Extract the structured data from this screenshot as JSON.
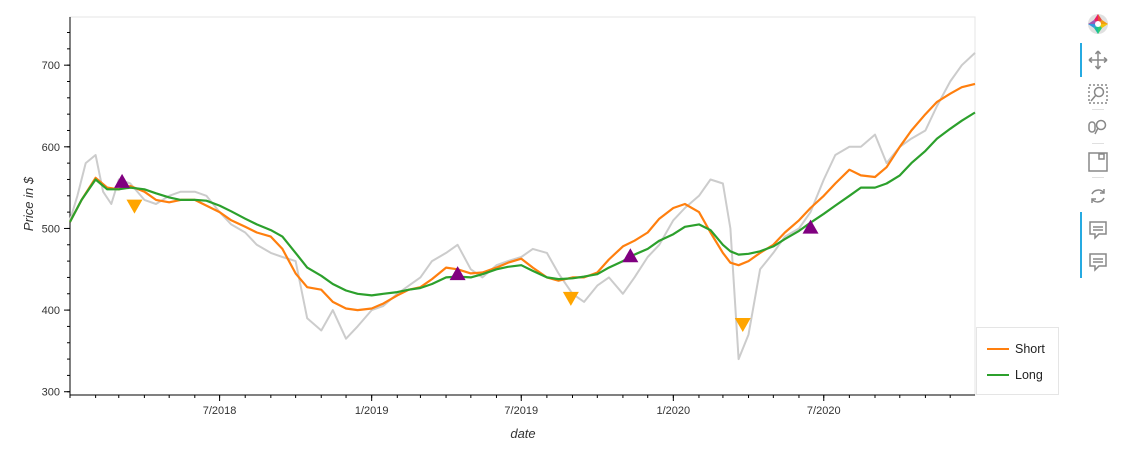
{
  "chart_data": {
    "type": "line",
    "title": "",
    "xlabel": "date",
    "ylabel": "Price in $",
    "ylim": [
      296,
      759
    ],
    "xlim": [
      "2018-01-01",
      "2020-12-31"
    ],
    "x_ticks": [
      {
        "date": "2018-07-01",
        "label": "7/2018"
      },
      {
        "date": "2019-01-01",
        "label": "1/2019"
      },
      {
        "date": "2019-07-01",
        "label": "7/2019"
      },
      {
        "date": "2020-01-01",
        "label": "1/2020"
      },
      {
        "date": "2020-07-01",
        "label": "7/2020"
      }
    ],
    "y_ticks": [
      300,
      400,
      500,
      600,
      700
    ],
    "legend_position": "bottom-right, outside plot",
    "series": [
      {
        "name": "",
        "color": "#cccccc",
        "dates": [
          "2018-01-01",
          "2018-01-10",
          "2018-01-20",
          "2018-02-01",
          "2018-02-10",
          "2018-02-20",
          "2018-03-01",
          "2018-03-15",
          "2018-04-01",
          "2018-04-15",
          "2018-05-01",
          "2018-05-15",
          "2018-06-01",
          "2018-06-15",
          "2018-07-01",
          "2018-07-15",
          "2018-08-01",
          "2018-08-15",
          "2018-09-01",
          "2018-09-15",
          "2018-10-01",
          "2018-10-15",
          "2018-11-01",
          "2018-11-15",
          "2018-12-01",
          "2018-12-15",
          "2019-01-01",
          "2019-01-15",
          "2019-02-01",
          "2019-02-15",
          "2019-03-01",
          "2019-03-15",
          "2019-04-01",
          "2019-04-15",
          "2019-05-01",
          "2019-05-15",
          "2019-06-01",
          "2019-06-15",
          "2019-07-01",
          "2019-07-15",
          "2019-08-01",
          "2019-08-15",
          "2019-09-01",
          "2019-09-15",
          "2019-10-01",
          "2019-10-15",
          "2019-11-01",
          "2019-11-15",
          "2019-12-01",
          "2019-12-15",
          "2020-01-01",
          "2020-01-15",
          "2020-02-01",
          "2020-02-15",
          "2020-03-01",
          "2020-03-10",
          "2020-03-20",
          "2020-04-01",
          "2020-04-15",
          "2020-05-01",
          "2020-05-15",
          "2020-06-01",
          "2020-06-15",
          "2020-07-01",
          "2020-07-15",
          "2020-08-01",
          "2020-08-15",
          "2020-09-01",
          "2020-09-15",
          "2020-10-01",
          "2020-10-15",
          "2020-11-01",
          "2020-11-15",
          "2020-12-01",
          "2020-12-15",
          "2020-12-31"
        ],
        "values": [
          510,
          540,
          580,
          590,
          545,
          530,
          560,
          555,
          535,
          530,
          540,
          545,
          545,
          540,
          520,
          505,
          495,
          480,
          470,
          465,
          460,
          390,
          375,
          400,
          365,
          380,
          400,
          405,
          420,
          430,
          440,
          460,
          470,
          480,
          450,
          440,
          455,
          460,
          465,
          475,
          470,
          445,
          420,
          410,
          430,
          440,
          420,
          440,
          465,
          480,
          510,
          525,
          540,
          560,
          555,
          500,
          340,
          370,
          450,
          470,
          490,
          500,
          520,
          560,
          590,
          600,
          600,
          615,
          580,
          600,
          610,
          620,
          650,
          680,
          700,
          715
        ]
      },
      {
        "name": "Short",
        "color": "#ff7f0e",
        "dates": [
          "2018-01-01",
          "2018-01-15",
          "2018-02-01",
          "2018-02-15",
          "2018-03-01",
          "2018-03-15",
          "2018-04-01",
          "2018-04-15",
          "2018-05-01",
          "2018-05-15",
          "2018-06-01",
          "2018-06-15",
          "2018-07-01",
          "2018-07-15",
          "2018-08-01",
          "2018-08-15",
          "2018-09-01",
          "2018-09-15",
          "2018-10-01",
          "2018-10-15",
          "2018-11-01",
          "2018-11-15",
          "2018-12-01",
          "2018-12-15",
          "2019-01-01",
          "2019-01-15",
          "2019-02-01",
          "2019-02-15",
          "2019-03-01",
          "2019-03-15",
          "2019-04-01",
          "2019-04-15",
          "2019-05-01",
          "2019-05-15",
          "2019-06-01",
          "2019-06-15",
          "2019-07-01",
          "2019-07-15",
          "2019-08-01",
          "2019-08-15",
          "2019-09-01",
          "2019-09-15",
          "2019-10-01",
          "2019-10-15",
          "2019-11-01",
          "2019-11-15",
          "2019-12-01",
          "2019-12-15",
          "2020-01-01",
          "2020-01-15",
          "2020-02-01",
          "2020-02-15",
          "2020-03-01",
          "2020-03-10",
          "2020-03-20",
          "2020-04-01",
          "2020-04-15",
          "2020-05-01",
          "2020-05-15",
          "2020-06-01",
          "2020-06-15",
          "2020-07-01",
          "2020-07-15",
          "2020-08-01",
          "2020-08-15",
          "2020-09-01",
          "2020-09-15",
          "2020-10-01",
          "2020-10-15",
          "2020-11-01",
          "2020-11-15",
          "2020-12-01",
          "2020-12-15",
          "2020-12-31"
        ],
        "values": [
          508,
          535,
          562,
          550,
          548,
          552,
          545,
          535,
          532,
          535,
          535,
          528,
          520,
          510,
          502,
          495,
          490,
          475,
          445,
          428,
          425,
          410,
          402,
          400,
          402,
          408,
          418,
          425,
          428,
          438,
          452,
          450,
          445,
          446,
          452,
          458,
          463,
          452,
          440,
          436,
          440,
          440,
          446,
          462,
          478,
          485,
          495,
          512,
          525,
          530,
          520,
          495,
          470,
          458,
          455,
          460,
          470,
          480,
          495,
          510,
          525,
          540,
          555,
          572,
          565,
          563,
          575,
          600,
          620,
          640,
          655,
          665,
          673,
          677
        ]
      },
      {
        "name": "Long",
        "color": "#2ca02c",
        "dates": [
          "2018-01-01",
          "2018-01-15",
          "2018-02-01",
          "2018-02-15",
          "2018-03-01",
          "2018-03-15",
          "2018-04-01",
          "2018-04-15",
          "2018-05-01",
          "2018-05-15",
          "2018-06-01",
          "2018-06-15",
          "2018-07-01",
          "2018-07-15",
          "2018-08-01",
          "2018-08-15",
          "2018-09-01",
          "2018-09-15",
          "2018-10-01",
          "2018-10-15",
          "2018-11-01",
          "2018-11-15",
          "2018-12-01",
          "2018-12-15",
          "2019-01-01",
          "2019-01-15",
          "2019-02-01",
          "2019-02-15",
          "2019-03-01",
          "2019-03-15",
          "2019-04-01",
          "2019-04-15",
          "2019-05-01",
          "2019-05-15",
          "2019-06-01",
          "2019-06-15",
          "2019-07-01",
          "2019-07-15",
          "2019-08-01",
          "2019-08-15",
          "2019-09-01",
          "2019-09-15",
          "2019-10-01",
          "2019-10-15",
          "2019-11-01",
          "2019-11-15",
          "2019-12-01",
          "2019-12-15",
          "2020-01-01",
          "2020-01-15",
          "2020-02-01",
          "2020-02-15",
          "2020-03-01",
          "2020-03-10",
          "2020-03-20",
          "2020-04-01",
          "2020-04-15",
          "2020-05-01",
          "2020-05-15",
          "2020-06-01",
          "2020-06-15",
          "2020-07-01",
          "2020-07-15",
          "2020-08-01",
          "2020-08-15",
          "2020-09-01",
          "2020-09-15",
          "2020-10-01",
          "2020-10-15",
          "2020-11-01",
          "2020-11-15",
          "2020-12-01",
          "2020-12-15",
          "2020-12-31"
        ],
        "values": [
          508,
          535,
          560,
          548,
          548,
          550,
          548,
          543,
          538,
          535,
          535,
          534,
          528,
          521,
          512,
          505,
          498,
          490,
          470,
          452,
          442,
          432,
          424,
          420,
          418,
          420,
          422,
          425,
          427,
          432,
          440,
          441,
          440,
          444,
          450,
          453,
          455,
          448,
          440,
          438,
          439,
          441,
          444,
          452,
          460,
          468,
          475,
          485,
          493,
          502,
          505,
          498,
          480,
          472,
          468,
          469,
          472,
          478,
          487,
          497,
          507,
          518,
          528,
          540,
          550,
          550,
          555,
          565,
          580,
          595,
          610,
          622,
          632,
          642
        ]
      }
    ],
    "markers": [
      {
        "type": "buy",
        "shape": "triangle-up",
        "color": "#800080",
        "date": "2018-03-05",
        "value": 557
      },
      {
        "type": "sell",
        "shape": "triangle-down",
        "color": "#ffa500",
        "date": "2018-03-20",
        "value": 528
      },
      {
        "type": "buy",
        "shape": "triangle-up",
        "color": "#800080",
        "date": "2019-04-15",
        "value": 444
      },
      {
        "type": "sell",
        "shape": "triangle-down",
        "color": "#ffa500",
        "date": "2019-08-30",
        "value": 415
      },
      {
        "type": "buy",
        "shape": "triangle-up",
        "color": "#800080",
        "date": "2019-11-10",
        "value": 466
      },
      {
        "type": "sell",
        "shape": "triangle-down",
        "color": "#ffa500",
        "date": "2020-03-25",
        "value": 383
      },
      {
        "type": "buy",
        "shape": "triangle-up",
        "color": "#800080",
        "date": "2020-06-15",
        "value": 501
      }
    ]
  },
  "legend": {
    "items": [
      {
        "label": "Short",
        "color": "#ff7f0e"
      },
      {
        "label": "Long",
        "color": "#2ca02c"
      }
    ]
  },
  "toolbar": {
    "tools": [
      "bokeh-logo-icon",
      "pan-icon",
      "box-zoom-icon",
      "wheel-zoom-icon",
      "save-icon",
      "reset-icon",
      "hover-icon",
      "hover-icon"
    ]
  }
}
